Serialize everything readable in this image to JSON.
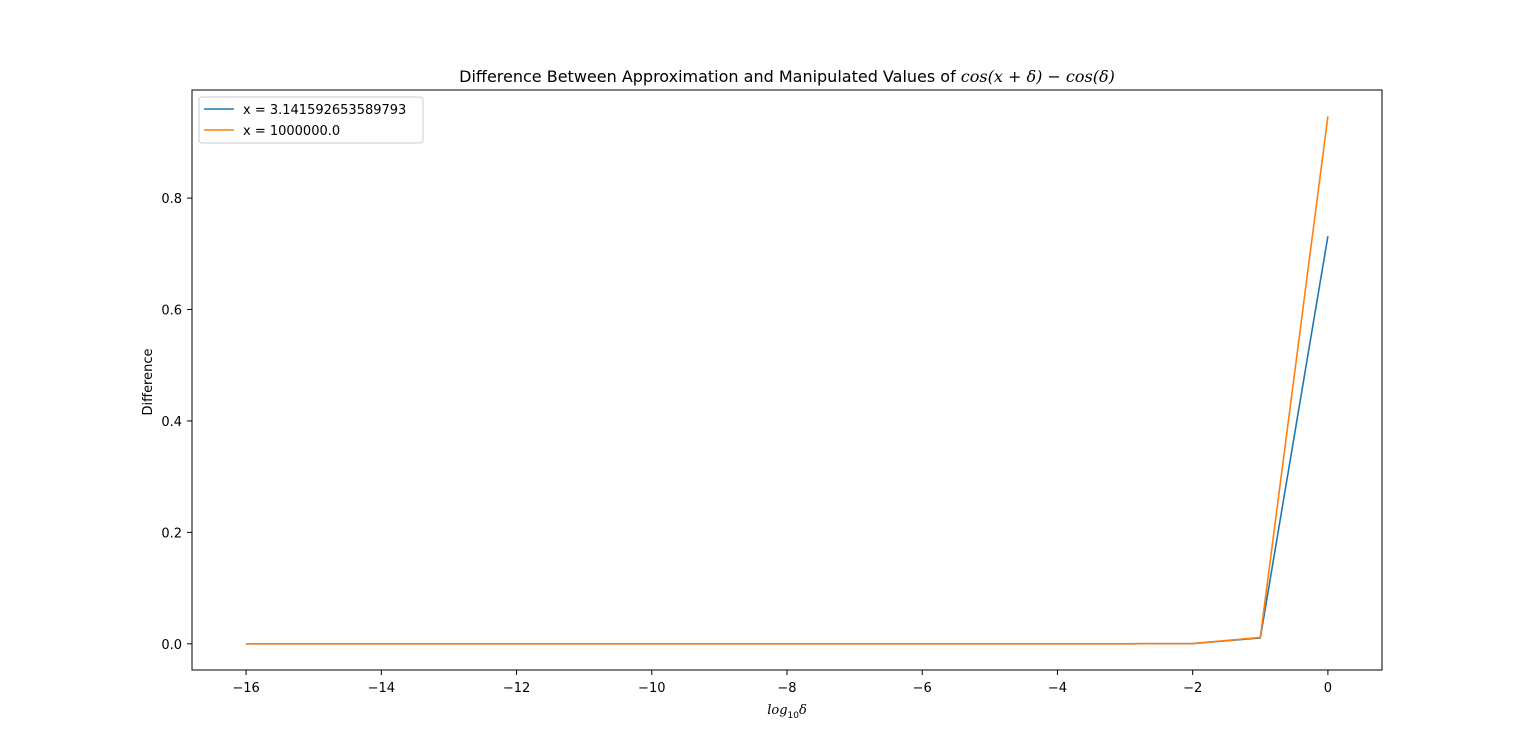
{
  "chart_data": {
    "type": "line",
    "title": "Difference Between Approximation and Manipulated Values of ",
    "title_math": "cos(x + δ) − cos(δ)",
    "xlabel_prefix": "log",
    "xlabel_sub": "10",
    "xlabel_suffix": "δ",
    "ylabel": "Difference",
    "x": [
      -16,
      -15,
      -14,
      -13,
      -12,
      -11,
      -10,
      -9,
      -8,
      -7,
      -6,
      -5,
      -4,
      -3,
      -2,
      -1,
      0
    ],
    "series": [
      {
        "name": "x = 3.141592653589793",
        "color": "#1f77b4",
        "values": [
          0,
          0,
          0,
          0,
          0,
          0,
          0,
          0,
          0,
          0,
          0,
          0,
          0,
          5e-05,
          0.0005,
          0.0105,
          0.7317
        ]
      },
      {
        "name": "x = 1000000.0",
        "color": "#ff7f0e",
        "values": [
          0,
          0,
          0,
          0,
          0,
          0,
          0,
          0,
          0,
          0,
          0,
          0,
          0,
          5e-05,
          0.0005,
          0.0115,
          0.9467
        ]
      }
    ],
    "xlim": [
      -16.8,
      0.8
    ],
    "ylim": [
      -0.047,
      0.994
    ],
    "xticks": [
      -16,
      -14,
      -12,
      -10,
      -8,
      -6,
      -4,
      -2,
      0
    ],
    "xtick_labels": [
      "−16",
      "−14",
      "−12",
      "−10",
      "−8",
      "−6",
      "−4",
      "−2",
      "0"
    ],
    "yticks": [
      0.0,
      0.2,
      0.4,
      0.6,
      0.8
    ],
    "ytick_labels": [
      "0.0",
      "0.2",
      "0.4",
      "0.6",
      "0.8"
    ],
    "grid": false,
    "legend_position": "upper left"
  }
}
